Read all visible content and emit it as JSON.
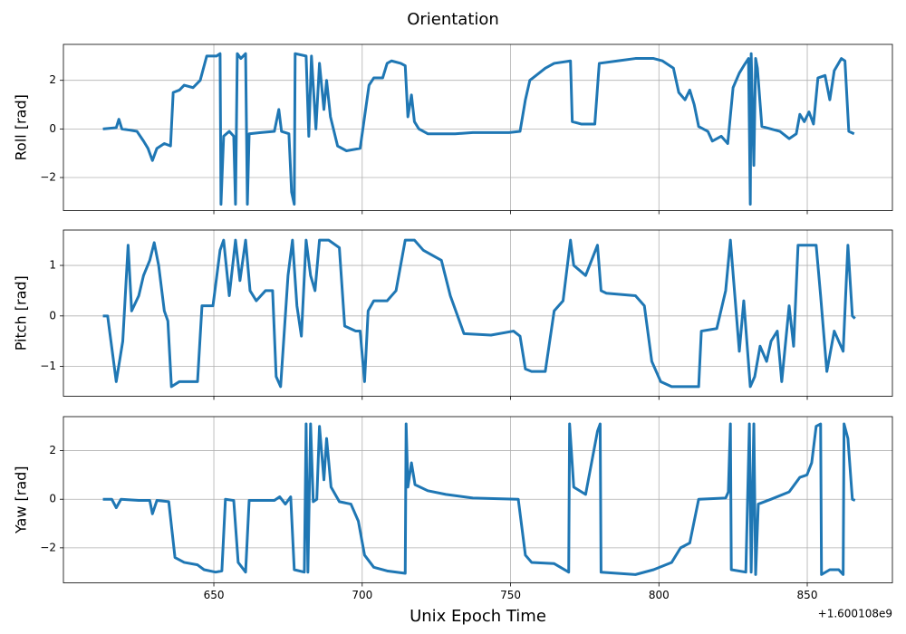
{
  "title": "Orientation",
  "chart_data": [
    {
      "type": "line",
      "ylabel": "Roll [rad]",
      "color": "#1f77b4",
      "grid": true,
      "show_xtick_labels": false,
      "xlim": [
        599.3,
        878.7
      ],
      "xticks": [
        650,
        700,
        750,
        800,
        850
      ],
      "ylim": [
        -3.36,
        3.48
      ],
      "yticks": [
        {
          "value": -2,
          "label": "−2"
        },
        0,
        2
      ],
      "x": [
        612.6,
        617.1,
        618,
        619,
        621.7,
        624.1,
        626.3,
        627.8,
        629.3,
        630.8,
        633.3,
        635.4,
        636.3,
        638.4,
        640,
        643,
        645.4,
        647.6,
        650.9,
        652.1,
        652.4,
        653.3,
        655.2,
        656.7,
        657.3,
        657.9,
        659.1,
        660.7,
        661.3,
        661.9,
        665.8,
        670.4,
        671.9,
        672.8,
        675.3,
        676.2,
        677.1,
        677.4,
        681.1,
        682,
        682.9,
        684.4,
        685.6,
        687.1,
        688,
        689.3,
        691.7,
        694.7,
        699.3,
        700.8,
        702.3,
        703.9,
        706.9,
        708.4,
        709.9,
        713,
        714.5,
        715.4,
        716.6,
        717.6,
        719.1,
        722.1,
        725.2,
        731.3,
        737.3,
        743.4,
        749.5,
        753.2,
        755,
        756.5,
        758.6,
        761.7,
        764.7,
        770.2,
        770.8,
        773.8,
        778.4,
        779.9,
        786,
        792.1,
        798.2,
        801.2,
        804.9,
        806.7,
        808.8,
        810.4,
        811.9,
        813.4,
        816.5,
        818,
        821,
        823.2,
        825,
        827.1,
        828.6,
        830.2,
        830.8,
        831.1,
        832,
        832.6,
        833.2,
        834.7,
        840.8,
        843.9,
        846.3,
        847.5,
        849,
        850.6,
        852.1,
        853.6,
        856,
        857.6,
        859.1,
        861.5,
        862.7,
        864,
        865.8
      ],
      "values": [
        0,
        0.05,
        0.4,
        0,
        -0.05,
        -0.1,
        -0.5,
        -0.8,
        -1.3,
        -0.8,
        -0.6,
        -0.7,
        1.5,
        1.6,
        1.8,
        1.7,
        2.0,
        3.0,
        3.0,
        3.1,
        -3.1,
        -0.3,
        -0.1,
        -0.3,
        -3.1,
        3.1,
        2.9,
        3.1,
        -3.1,
        -0.2,
        -0.15,
        -0.1,
        0.8,
        -0.1,
        -0.2,
        -2.6,
        -3.1,
        3.1,
        3.0,
        -0.3,
        3.0,
        0,
        2.7,
        0.8,
        2.0,
        0.5,
        -0.7,
        -0.9,
        -0.8,
        0.5,
        1.8,
        2.1,
        2.1,
        2.7,
        2.8,
        2.7,
        2.6,
        0.5,
        1.4,
        0.3,
        0,
        -0.2,
        -0.2,
        -0.2,
        -0.15,
        -0.15,
        -0.15,
        -0.1,
        1.2,
        2.0,
        2.2,
        2.5,
        2.7,
        2.8,
        0.3,
        0.2,
        0.2,
        2.7,
        2.8,
        2.9,
        2.9,
        2.8,
        2.5,
        1.5,
        1.2,
        1.6,
        1.0,
        0.1,
        -0.1,
        -0.5,
        -0.3,
        -0.6,
        1.7,
        2.3,
        2.6,
        2.9,
        -3.1,
        3.1,
        -1.5,
        2.9,
        2.5,
        0.1,
        -0.1,
        -0.4,
        -0.2,
        0.6,
        0.3,
        0.7,
        0.2,
        2.1,
        2.2,
        1.2,
        2.4,
        2.9,
        2.8,
        -0.1,
        -0.2
      ]
    },
    {
      "type": "line",
      "ylabel": "Pitch [rad]",
      "color": "#1f77b4",
      "grid": true,
      "show_xtick_labels": false,
      "xlim": [
        599.3,
        878.7
      ],
      "xticks": [
        650,
        700,
        750,
        800,
        850
      ],
      "ylim": [
        -1.59,
        1.7
      ],
      "yticks": [
        {
          "value": -1,
          "label": "−1"
        },
        0,
        1
      ],
      "x": [
        612.6,
        614.2,
        617.1,
        619.3,
        621.1,
        622.3,
        624.7,
        626.3,
        628.4,
        629.9,
        631.4,
        633.3,
        634.5,
        635.7,
        638.4,
        644.5,
        646,
        649.7,
        652.1,
        653.3,
        655.2,
        657.3,
        658.8,
        660.7,
        662.2,
        664.3,
        667.4,
        669.8,
        671,
        672.5,
        675,
        676.5,
        678,
        679.5,
        681.1,
        682.6,
        684.1,
        685.6,
        688.7,
        692.3,
        694.1,
        697.8,
        699.3,
        700.8,
        702,
        703.9,
        708.4,
        711.4,
        714.5,
        717.6,
        720.6,
        726.7,
        729.7,
        734.3,
        743.4,
        751,
        753.2,
        755,
        757.1,
        761.7,
        764.7,
        767.7,
        770.2,
        771.3,
        775.3,
        779.3,
        780.5,
        782.3,
        792.1,
        795.1,
        797.6,
        800.6,
        804.3,
        813.4,
        814.3,
        819.5,
        822.5,
        824.1,
        825.6,
        827.1,
        828.6,
        830.8,
        832.3,
        834.1,
        836.3,
        837.8,
        839.9,
        841.4,
        843.9,
        845.4,
        846.9,
        851.5,
        853,
        854.5,
        856.6,
        859.1,
        862.1,
        863.7,
        865.2,
        866.1
      ],
      "values": [
        0,
        0,
        -1.3,
        -0.5,
        1.4,
        0.1,
        0.4,
        0.8,
        1.1,
        1.45,
        1.0,
        0.1,
        -0.1,
        -1.4,
        -1.3,
        -1.3,
        0.2,
        0.2,
        1.3,
        1.5,
        0.4,
        1.5,
        0.7,
        1.5,
        0.5,
        0.3,
        0.5,
        0.5,
        -1.2,
        -1.4,
        0.8,
        1.5,
        0.2,
        -0.4,
        1.5,
        0.8,
        0.5,
        1.5,
        1.5,
        1.35,
        -0.2,
        -0.3,
        -0.3,
        -1.3,
        0.1,
        0.3,
        0.3,
        0.5,
        1.5,
        1.5,
        1.3,
        1.1,
        0.4,
        -0.35,
        -0.38,
        -0.3,
        -0.4,
        -1.05,
        -1.1,
        -1.1,
        0.1,
        0.3,
        1.5,
        1.0,
        0.8,
        1.4,
        0.5,
        0.45,
        0.4,
        0.2,
        -0.9,
        -1.3,
        -1.4,
        -1.4,
        -0.3,
        -0.25,
        0.5,
        1.5,
        0.4,
        -0.7,
        0.3,
        -1.4,
        -1.2,
        -0.6,
        -0.9,
        -0.5,
        -0.3,
        -1.3,
        0.2,
        -0.6,
        1.4,
        1.4,
        1.4,
        0.4,
        -1.1,
        -0.3,
        -0.7,
        1.4,
        0,
        -0.05
      ]
    },
    {
      "type": "line",
      "ylabel": "Yaw [rad]",
      "xlabel": "Unix Epoch Time",
      "x_offset_text": "+1.600108e9",
      "color": "#1f77b4",
      "grid": true,
      "show_xtick_labels": true,
      "xlim": [
        599.3,
        878.7
      ],
      "xticks": [
        650,
        700,
        750,
        800,
        850
      ],
      "ylim": [
        -3.44,
        3.4
      ],
      "yticks": [
        {
          "value": -2,
          "label": "−2"
        },
        0,
        2
      ],
      "x": [
        612.6,
        615.6,
        617.1,
        618.7,
        624.7,
        628.4,
        629.3,
        630.8,
        634.8,
        636.9,
        640,
        644.5,
        646.7,
        650.6,
        652.7,
        653.9,
        656.7,
        658.2,
        660.7,
        661.9,
        670.4,
        672.2,
        674.1,
        675.9,
        677.1,
        680.5,
        681.1,
        681.7,
        682.6,
        683.5,
        684.7,
        685.6,
        687.1,
        688,
        689.5,
        692.3,
        696.2,
        698.7,
        700.8,
        703.9,
        708.4,
        714.5,
        714.8,
        715.4,
        716.6,
        717.8,
        722.1,
        728.2,
        737.3,
        752.6,
        755,
        757.1,
        764.7,
        769.6,
        769.9,
        771.3,
        775.3,
        779.3,
        780.2,
        780.5,
        792.1,
        798.2,
        804.3,
        807.3,
        810.4,
        813.4,
        822.5,
        823.4,
        824.1,
        824.4,
        829.3,
        830.5,
        831.1,
        832,
        832.6,
        833.5,
        837.8,
        843.9,
        847.5,
        849.9,
        851.5,
        853,
        854.5,
        854.8,
        857.6,
        860.6,
        862.1,
        862.4,
        863.7,
        865.2,
        866.1
      ],
      "values": [
        0,
        0,
        -0.35,
        0,
        -0.05,
        -0.05,
        -0.6,
        -0.05,
        -0.1,
        -2.4,
        -2.6,
        -2.7,
        -2.9,
        -3.0,
        -2.95,
        0,
        -0.05,
        -2.6,
        -3.0,
        -0.05,
        -0.05,
        0.1,
        -0.2,
        0.1,
        -2.9,
        -3.0,
        3.1,
        -3.0,
        3.1,
        -0.1,
        0,
        3.0,
        0.8,
        2.5,
        0.5,
        -0.1,
        -0.2,
        -0.9,
        -2.3,
        -2.8,
        -2.95,
        -3.05,
        3.1,
        0.5,
        1.5,
        0.6,
        0.35,
        0.2,
        0.05,
        0,
        -2.3,
        -2.6,
        -2.65,
        -3.0,
        3.1,
        0.5,
        0.2,
        2.8,
        3.1,
        -3.0,
        -3.1,
        -2.9,
        -2.6,
        -2.0,
        -1.8,
        0,
        0.05,
        0.3,
        3.1,
        -2.9,
        -3.0,
        3.1,
        -3.0,
        3.1,
        -3.1,
        -0.2,
        0,
        0.3,
        0.9,
        1.0,
        1.5,
        3.0,
        3.1,
        -3.1,
        -2.9,
        -2.9,
        -3.1,
        3.1,
        2.5,
        0,
        -0.05
      ]
    }
  ]
}
